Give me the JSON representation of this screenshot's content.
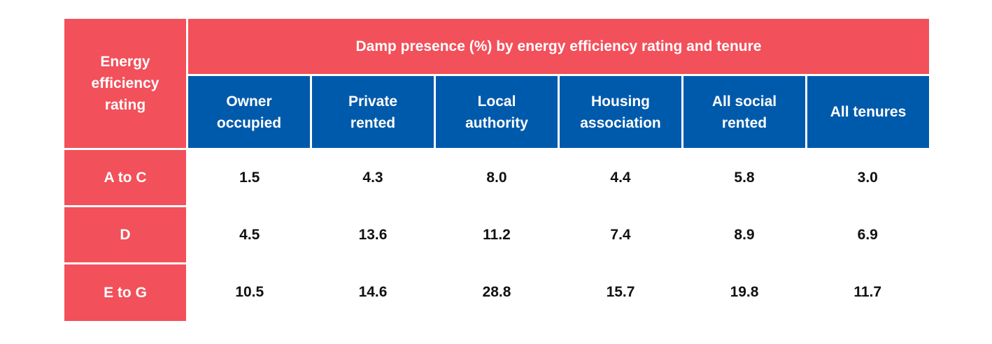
{
  "chart_data": {
    "type": "table",
    "title": "Damp presence (%) by energy efficiency rating and tenure",
    "row_header_label": "Energy\nefficiency\nrating",
    "columns": [
      {
        "label": "Owner\noccupied",
        "emphasis": false
      },
      {
        "label": "Private\nrented",
        "emphasis": false
      },
      {
        "label": "Local\nauthority",
        "emphasis": false
      },
      {
        "label": "Housing\nassociation",
        "emphasis": false
      },
      {
        "label": "All social\nrented",
        "emphasis": false
      },
      {
        "label": "All tenures",
        "emphasis": true
      }
    ],
    "rows": [
      {
        "label": "A to C",
        "values": [
          "1.5",
          "4.3",
          "8.0",
          "4.4",
          "5.8",
          "3.0"
        ]
      },
      {
        "label": "D",
        "values": [
          "4.5",
          "13.6",
          "11.2",
          "7.4",
          "8.9",
          "6.9"
        ]
      },
      {
        "label": "E to G",
        "values": [
          "10.5",
          "14.6",
          "28.8",
          "15.7",
          "19.8",
          "11.7"
        ]
      }
    ],
    "colors": {
      "header_red": "#f2505a",
      "header_blue": "#005aab",
      "text_dark": "#111111"
    }
  }
}
